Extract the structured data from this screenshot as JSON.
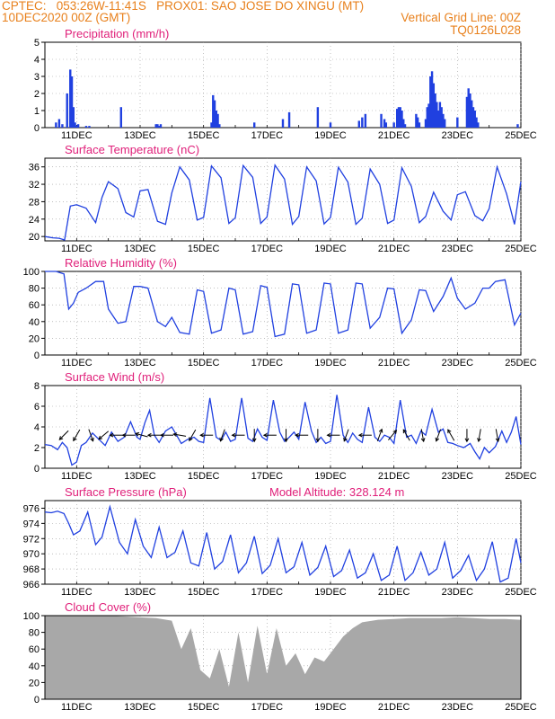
{
  "header": {
    "line1_left": "CPTEC:   053:26W-11:41S   PROX01: SAO JOSE DO XINGU (MT)",
    "line2_left": "10DEC2020 00Z (GMT)",
    "line2_right": "Vertical Grid Line: 00Z",
    "line3_right": "TQ0126L028"
  },
  "colors": {
    "header": "#e8801c",
    "title": "#e0207a",
    "series": "#2040e0",
    "cloud": "#a8a8a8",
    "grid": "#9a9a9a"
  },
  "x_axis": {
    "start": "10DEC2020 00Z",
    "end": "25DEC2020 00Z",
    "ticks": [
      "11DEC",
      "13DEC",
      "15DEC",
      "17DEC",
      "19DEC",
      "21DEC",
      "23DEC",
      "25DEC"
    ],
    "tick_days": [
      1,
      3,
      5,
      7,
      9,
      11,
      13,
      15
    ]
  },
  "chart_data": [
    {
      "type": "bar",
      "title": "Precipitation (mm/h)",
      "ylim": [
        0,
        5
      ],
      "yticks": [
        "0",
        "1",
        "2",
        "3",
        "4",
        "5"
      ],
      "series": [
        {
          "x": [
            0.35,
            0.45,
            0.55,
            0.7,
            0.8,
            0.85,
            0.9,
            0.95,
            1.0,
            1.05,
            1.3,
            1.4,
            2.4,
            3.5,
            3.55,
            3.6,
            3.65,
            5.25,
            5.3,
            5.35,
            5.4,
            5.45,
            5.5,
            6.6,
            7.5,
            7.7,
            8.6,
            9.0,
            9.9,
            10.0,
            10.1,
            10.6,
            10.7,
            10.75,
            11.0,
            11.1,
            11.15,
            11.2,
            11.25,
            11.3,
            11.35,
            11.7,
            11.75,
            11.8,
            12.0,
            12.05,
            12.1,
            12.15,
            12.2,
            12.25,
            12.3,
            12.35,
            12.4,
            12.45,
            12.5,
            12.55,
            12.6,
            13.0,
            13.3,
            13.35,
            13.4,
            13.45,
            13.5,
            13.55,
            13.6,
            13.65,
            14.9
          ],
          "values": [
            0.3,
            0.5,
            0.2,
            2.0,
            3.4,
            3.0,
            1.2,
            0.3,
            0.1,
            0.2,
            0.1,
            0.1,
            1.2,
            0.2,
            0.2,
            0.1,
            0.2,
            0.3,
            1.9,
            1.6,
            1.0,
            0.8,
            0.2,
            0.3,
            0.5,
            0.9,
            1.2,
            0.3,
            0.4,
            0.6,
            0.8,
            0.8,
            0.5,
            0.3,
            0.3,
            1.1,
            1.2,
            1.2,
            1.0,
            0.5,
            0.2,
            0.8,
            0.6,
            0.3,
            0.5,
            1.2,
            1.4,
            3.0,
            3.3,
            2.6,
            2.0,
            1.5,
            1.0,
            1.5,
            1.2,
            0.8,
            0.5,
            0.6,
            1.8,
            2.3,
            2.0,
            1.6,
            1.2,
            1.0,
            0.6,
            0.3,
            0.2
          ]
        }
      ]
    },
    {
      "type": "line",
      "title": "Surface Temperature (nC)",
      "ylim": [
        19,
        38
      ],
      "yticks": [
        "20",
        "24",
        "28",
        "32",
        "36"
      ],
      "series": [
        {
          "x": [
            0,
            0.25,
            0.45,
            0.62,
            0.8,
            1.0,
            1.3,
            1.6,
            1.8,
            2.0,
            2.3,
            2.55,
            2.8,
            3.0,
            3.25,
            3.55,
            3.8,
            4.0,
            4.25,
            4.55,
            4.8,
            5.0,
            5.25,
            5.55,
            5.8,
            6.0,
            6.25,
            6.55,
            6.8,
            7.0,
            7.25,
            7.55,
            7.8,
            8.0,
            8.25,
            8.55,
            8.8,
            9.0,
            9.25,
            9.55,
            9.8,
            10.0,
            10.25,
            10.55,
            10.8,
            11.0,
            11.25,
            11.55,
            11.8,
            12.0,
            12.25,
            12.55,
            12.8,
            13.0,
            13.25,
            13.55,
            13.8,
            14.0,
            14.25,
            14.55,
            14.8,
            15.0
          ],
          "values": [
            20.0,
            19.7,
            19.6,
            19.2,
            27.0,
            27.3,
            26.5,
            23.2,
            29.0,
            32.6,
            31.0,
            25.5,
            24.5,
            30.5,
            30.8,
            23.5,
            22.8,
            30.0,
            36.0,
            33.0,
            23.8,
            24.4,
            36.2,
            33.5,
            23.0,
            24.3,
            36.3,
            33.6,
            23.0,
            24.5,
            36.4,
            33.2,
            22.8,
            24.6,
            36.0,
            32.8,
            22.9,
            24.4,
            35.9,
            32.5,
            22.8,
            24.2,
            35.5,
            32.0,
            23.0,
            23.8,
            35.8,
            31.5,
            23.2,
            24.6,
            30.2,
            25.8,
            23.8,
            29.6,
            30.3,
            24.8,
            23.6,
            26.4,
            36.0,
            29.8,
            22.8,
            32.6
          ]
        }
      ]
    },
    {
      "type": "line",
      "title": "Relative Humidity (%)",
      "ylim": [
        0,
        100
      ],
      "yticks": [
        "0",
        "20",
        "40",
        "60",
        "80",
        "100"
      ],
      "series": [
        {
          "x": [
            0,
            0.35,
            0.6,
            0.75,
            0.9,
            1.05,
            1.3,
            1.6,
            1.85,
            2.0,
            2.3,
            2.55,
            2.8,
            3.0,
            3.25,
            3.55,
            3.8,
            4.0,
            4.25,
            4.55,
            4.8,
            5.0,
            5.25,
            5.55,
            5.8,
            6.0,
            6.25,
            6.55,
            6.8,
            7.0,
            7.25,
            7.55,
            7.8,
            8.0,
            8.25,
            8.55,
            8.8,
            9.0,
            9.25,
            9.55,
            9.8,
            10.0,
            10.25,
            10.55,
            10.8,
            11.0,
            11.25,
            11.55,
            11.8,
            12.0,
            12.25,
            12.55,
            12.8,
            13.0,
            13.25,
            13.55,
            13.8,
            14.0,
            14.2,
            14.5,
            14.8,
            15.0
          ],
          "values": [
            100,
            100,
            97,
            55,
            62,
            75,
            80,
            88,
            88,
            55,
            38,
            40,
            82,
            82,
            80,
            40,
            34,
            45,
            27,
            25,
            78,
            76,
            26,
            30,
            80,
            78,
            25,
            28,
            83,
            81,
            22,
            25,
            85,
            84,
            26,
            30,
            86,
            85,
            26,
            30,
            86,
            85,
            32,
            45,
            80,
            79,
            26,
            42,
            78,
            77,
            52,
            70,
            92,
            68,
            55,
            62,
            80,
            80,
            88,
            90,
            36,
            50
          ]
        }
      ]
    },
    {
      "type": "line",
      "title": "Surface Wind (m/s)",
      "ylim": [
        0,
        8
      ],
      "yticks": [
        "0",
        "2",
        "4",
        "6",
        "8"
      ],
      "series": [
        {
          "x": [
            0,
            0.2,
            0.4,
            0.55,
            0.7,
            0.85,
            1.0,
            1.15,
            1.3,
            1.5,
            1.7,
            1.9,
            2.1,
            2.3,
            2.5,
            2.7,
            2.9,
            3.0,
            3.15,
            3.3,
            3.45,
            3.6,
            3.8,
            4.0,
            4.15,
            4.3,
            4.5,
            4.7,
            4.85,
            5.0,
            5.2,
            5.4,
            5.55,
            5.7,
            5.85,
            6.0,
            6.2,
            6.4,
            6.55,
            6.7,
            6.85,
            7.0,
            7.2,
            7.4,
            7.55,
            7.7,
            7.85,
            8.0,
            8.2,
            8.4,
            8.55,
            8.7,
            8.85,
            9.0,
            9.2,
            9.4,
            9.55,
            9.7,
            9.85,
            10.0,
            10.2,
            10.4,
            10.55,
            10.7,
            10.85,
            11.0,
            11.2,
            11.4,
            11.55,
            11.7,
            11.85,
            12.0,
            12.2,
            12.4,
            12.55,
            12.7,
            12.85,
            13.0,
            13.2,
            13.4,
            13.55,
            13.7,
            13.85,
            14.0,
            14.2,
            14.4,
            14.55,
            14.7,
            14.85,
            15.0
          ],
          "values": [
            2.3,
            2.2,
            1.8,
            2.5,
            2.0,
            0.3,
            0.6,
            2.2,
            2.5,
            3.4,
            2.8,
            2.2,
            3.5,
            2.6,
            3.0,
            4.5,
            3.0,
            2.8,
            4.4,
            5.6,
            3.2,
            2.5,
            3.6,
            4.0,
            3.2,
            2.4,
            2.8,
            3.0,
            2.6,
            2.5,
            6.8,
            3.0,
            2.7,
            3.5,
            2.6,
            2.8,
            6.8,
            2.9,
            2.6,
            3.8,
            3.0,
            2.7,
            6.6,
            3.5,
            2.6,
            3.0,
            3.5,
            2.8,
            6.4,
            3.6,
            2.5,
            3.0,
            2.4,
            2.6,
            7.1,
            3.2,
            2.5,
            3.4,
            2.8,
            2.5,
            5.9,
            3.0,
            2.6,
            3.2,
            3.0,
            2.4,
            6.6,
            3.0,
            3.2,
            2.4,
            3.6,
            3.2,
            5.7,
            3.5,
            3.8,
            2.5,
            2.4,
            2.2,
            2.0,
            2.4,
            1.6,
            0.9,
            2.0,
            1.5,
            2.1,
            3.6,
            2.5,
            3.5,
            5.0,
            2.3
          ]
        }
      ],
      "wind_vectors": [
        {
          "x": 0.6,
          "dir": 225
        },
        {
          "x": 1.0,
          "dir": 210
        },
        {
          "x": 1.45,
          "dir": 160
        },
        {
          "x": 1.85,
          "dir": 230
        },
        {
          "x": 2.25,
          "dir": 270
        },
        {
          "x": 2.65,
          "dir": 270
        },
        {
          "x": 3.05,
          "dir": 285
        },
        {
          "x": 3.45,
          "dir": 270
        },
        {
          "x": 3.85,
          "dir": 270
        },
        {
          "x": 4.25,
          "dir": 280
        },
        {
          "x": 4.65,
          "dir": 210
        },
        {
          "x": 5.1,
          "dir": 270
        },
        {
          "x": 5.6,
          "dir": 200
        },
        {
          "x": 6.1,
          "dir": 270
        },
        {
          "x": 6.6,
          "dir": 180
        },
        {
          "x": 7.1,
          "dir": 270
        },
        {
          "x": 7.6,
          "dir": 180
        },
        {
          "x": 8.1,
          "dir": 270
        },
        {
          "x": 8.6,
          "dir": 180
        },
        {
          "x": 9.1,
          "dir": 270
        },
        {
          "x": 9.5,
          "dir": 200
        },
        {
          "x": 10.1,
          "dir": 270
        },
        {
          "x": 10.55,
          "dir": 20
        },
        {
          "x": 10.95,
          "dir": 40
        },
        {
          "x": 11.4,
          "dir": 330
        },
        {
          "x": 11.9,
          "dir": 170
        },
        {
          "x": 12.4,
          "dir": 200
        },
        {
          "x": 12.8,
          "dir": 330
        },
        {
          "x": 13.3,
          "dir": 180
        },
        {
          "x": 13.7,
          "dir": 190
        },
        {
          "x": 14.25,
          "dir": 170
        }
      ]
    },
    {
      "type": "line",
      "title": "Surface Pressure (hPa)",
      "subtitle": "Model Altitude: 328.124 m",
      "ylim": [
        966,
        977
      ],
      "yticks": [
        "966",
        "968",
        "970",
        "972",
        "974",
        "976"
      ],
      "series": [
        {
          "x": [
            0,
            0.2,
            0.4,
            0.6,
            0.75,
            0.9,
            1.1,
            1.35,
            1.6,
            1.8,
            2.05,
            2.35,
            2.6,
            2.85,
            3.1,
            3.35,
            3.6,
            3.85,
            4.1,
            4.35,
            4.6,
            4.85,
            5.1,
            5.35,
            5.6,
            5.85,
            6.1,
            6.35,
            6.6,
            6.85,
            7.1,
            7.35,
            7.6,
            7.85,
            8.1,
            8.35,
            8.6,
            8.85,
            9.1,
            9.35,
            9.6,
            9.85,
            10.1,
            10.35,
            10.6,
            10.85,
            11.1,
            11.35,
            11.6,
            11.85,
            12.1,
            12.35,
            12.6,
            12.85,
            13.1,
            13.35,
            13.6,
            13.85,
            14.1,
            14.35,
            14.6,
            14.85,
            15.0
          ],
          "values": [
            975.5,
            975.4,
            975.6,
            975.3,
            974.0,
            972.5,
            973.0,
            975.5,
            971.2,
            972.2,
            976.2,
            971.5,
            970.0,
            974.5,
            971.0,
            969.5,
            973.5,
            969.5,
            970.2,
            973.0,
            968.8,
            968.4,
            972.8,
            968.0,
            969.0,
            972.5,
            967.5,
            968.8,
            972.3,
            967.4,
            968.5,
            972.0,
            967.5,
            968.3,
            971.5,
            967.2,
            968.2,
            971.0,
            967.0,
            967.8,
            970.5,
            966.8,
            967.5,
            970.0,
            966.5,
            967.2,
            971.0,
            966.5,
            967.5,
            970.2,
            967.2,
            968.0,
            971.5,
            966.8,
            967.8,
            969.8,
            966.5,
            968.0,
            971.6,
            966.3,
            966.8,
            972.0,
            968.8
          ]
        }
      ]
    },
    {
      "type": "area",
      "title": "Cloud Cover (%)",
      "ylim": [
        0,
        100
      ],
      "yticks": [
        "0",
        "20",
        "40",
        "60",
        "80",
        "100"
      ],
      "series": [
        {
          "x": [
            0,
            0.5,
            1.0,
            1.5,
            2.0,
            2.5,
            3.0,
            3.5,
            4.0,
            4.3,
            4.6,
            4.9,
            5.2,
            5.5,
            5.8,
            6.1,
            6.4,
            6.7,
            7.0,
            7.3,
            7.6,
            7.9,
            8.2,
            8.5,
            8.8,
            9.1,
            9.4,
            9.7,
            10.0,
            10.5,
            11.0,
            11.5,
            12.0,
            12.5,
            13.0,
            13.5,
            14.0,
            14.5,
            15.0
          ],
          "values": [
            100,
            100,
            100,
            100,
            100,
            99,
            98,
            97,
            94,
            60,
            85,
            35,
            25,
            60,
            15,
            80,
            20,
            88,
            30,
            85,
            40,
            55,
            30,
            50,
            45,
            60,
            75,
            85,
            92,
            95,
            96,
            97,
            97,
            97,
            98,
            97,
            96,
            96,
            95
          ]
        }
      ]
    }
  ]
}
